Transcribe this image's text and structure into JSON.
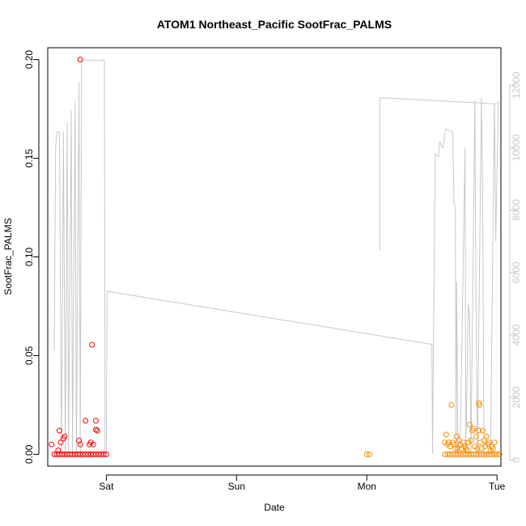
{
  "chart_data": {
    "type": "scatter",
    "title": "ATOM1 Northeast_Pacific SootFrac_PALMS",
    "xlabel": "Date",
    "ylabel": "SootFrac_PALMS",
    "x_unit": "days",
    "xlim": [
      -0.45,
      3.03
    ],
    "ylim": [
      -0.006,
      0.206
    ],
    "y_ticks": [
      "0.00",
      "0.05",
      "0.10",
      "0.15",
      "0.20"
    ],
    "y_tick_values": [
      0,
      0.05,
      0.1,
      0.15,
      0.2
    ],
    "x_ticks": [
      "Sat",
      "Sun",
      "Mon",
      "Tue"
    ],
    "x_tick_values": [
      0,
      1,
      2,
      3
    ],
    "secondary_axis": {
      "ylim": [
        -200,
        13200
      ],
      "ticks": [
        "0",
        "2000",
        "4000",
        "6000",
        "8000",
        "10000",
        "12000"
      ],
      "tick_values": [
        0,
        2000,
        4000,
        6000,
        8000,
        10000,
        12000
      ],
      "color": "#c8c8c8"
    },
    "altitude_line": {
      "color": "#c8c8c8",
      "points": [
        [
          -0.4,
          3500
        ],
        [
          -0.39,
          10000
        ],
        [
          -0.38,
          10500
        ],
        [
          -0.36,
          10500
        ],
        [
          -0.345,
          200
        ],
        [
          -0.33,
          10500
        ],
        [
          -0.315,
          200
        ],
        [
          -0.3,
          10800
        ],
        [
          -0.29,
          200
        ],
        [
          -0.27,
          11200
        ],
        [
          -0.26,
          200
        ],
        [
          -0.24,
          11500
        ],
        [
          -0.23,
          200
        ],
        [
          -0.21,
          12100
        ],
        [
          -0.2,
          200
        ],
        [
          -0.19,
          12800
        ],
        [
          -0.16,
          12800
        ],
        [
          -0.015,
          12800
        ],
        [
          -0.01,
          200
        ],
        [
          -0.005,
          200
        ],
        [
          0,
          200
        ],
        [
          0.005,
          5400
        ],
        [
          2.5,
          3700
        ],
        [
          2.505,
          200
        ],
        [
          2.525,
          9800
        ],
        [
          2.55,
          9700
        ],
        [
          2.56,
          10200
        ],
        [
          2.58,
          10000
        ],
        [
          2.59,
          10100
        ],
        [
          2.605,
          10600
        ],
        [
          2.66,
          10500
        ],
        [
          2.67,
          8200
        ],
        [
          2.68,
          8100
        ],
        [
          2.685,
          200
        ],
        [
          2.69,
          5700
        ],
        [
          2.7,
          200
        ],
        [
          2.72,
          1000
        ],
        [
          2.755,
          10000
        ],
        [
          2.76,
          200
        ],
        [
          2.78,
          5000
        ],
        [
          2.79,
          4600
        ],
        [
          2.8,
          200
        ],
        [
          2.83,
          11500
        ],
        [
          2.84,
          4400
        ],
        [
          2.85,
          200
        ],
        [
          2.88,
          11600
        ],
        [
          2.89,
          8000
        ],
        [
          2.9,
          200
        ],
        [
          2.95,
          200
        ],
        [
          2.98,
          11400
        ],
        [
          2.99,
          7000
        ],
        [
          3.01,
          11500
        ],
        [
          2.1,
          6700
        ],
        [
          2.1,
          11600
        ],
        [
          3.0,
          11400
        ]
      ]
    },
    "series": [
      {
        "color": "#ff0000",
        "points": [
          [
            -0.42,
            0.005
          ],
          [
            -0.37,
            0.002
          ],
          [
            -0.36,
            0.012
          ],
          [
            -0.35,
            0.006
          ],
          [
            -0.33,
            0.008
          ],
          [
            -0.32,
            0.009
          ],
          [
            -0.2,
            0.2
          ],
          [
            -0.21,
            0.007
          ],
          [
            -0.2,
            0.005
          ],
          [
            -0.16,
            0.017
          ],
          [
            -0.13,
            0.005
          ],
          [
            -0.12,
            0.006
          ],
          [
            -0.11,
            0.0555
          ],
          [
            -0.1,
            0.005
          ],
          [
            -0.08,
            0.017
          ],
          [
            -0.07,
            0.012
          ],
          [
            -0.08,
            0.0125
          ],
          [
            -0.06,
            0.0
          ],
          [
            -0.4,
            0.0
          ],
          [
            -0.38,
            0.0
          ],
          [
            -0.36,
            0.0
          ],
          [
            -0.34,
            0.0
          ],
          [
            -0.32,
            0.0
          ],
          [
            -0.3,
            0.0
          ],
          [
            -0.28,
            0.0
          ],
          [
            -0.26,
            0.0
          ],
          [
            -0.24,
            0.0
          ],
          [
            -0.22,
            0.0
          ],
          [
            -0.2,
            0.0
          ],
          [
            -0.18,
            0.0
          ],
          [
            -0.16,
            0.0
          ],
          [
            -0.14,
            0.0
          ],
          [
            -0.12,
            0.0
          ],
          [
            -0.1,
            0.0
          ],
          [
            -0.08,
            0.0
          ],
          [
            -0.04,
            0.0
          ],
          [
            -0.02,
            0.0
          ],
          [
            0.0,
            0.0
          ]
        ]
      },
      {
        "color": "#ff8c00",
        "points": [
          [
            2.0,
            0.0
          ],
          [
            2.02,
            0.0
          ],
          [
            2.6,
            0.006
          ],
          [
            2.61,
            0.01
          ],
          [
            2.62,
            0.005
          ],
          [
            2.63,
            0.006
          ],
          [
            2.64,
            0.004
          ],
          [
            2.65,
            0.025
          ],
          [
            2.66,
            0.006
          ],
          [
            2.67,
            0.005
          ],
          [
            2.68,
            0.003
          ],
          [
            2.69,
            0.009
          ],
          [
            2.7,
            0.003
          ],
          [
            2.71,
            0.007
          ],
          [
            2.72,
            0.005
          ],
          [
            2.73,
            0.003
          ],
          [
            2.74,
            0.006
          ],
          [
            2.75,
            0.004
          ],
          [
            2.76,
            0.003
          ],
          [
            2.77,
            0.002
          ],
          [
            2.78,
            0.006
          ],
          [
            2.79,
            0.015
          ],
          [
            2.8,
            0.007
          ],
          [
            2.81,
            0.012
          ],
          [
            2.82,
            0.013
          ],
          [
            2.83,
            0.004
          ],
          [
            2.84,
            0.009
          ],
          [
            2.85,
            0.003
          ],
          [
            2.86,
            0.012
          ],
          [
            2.86,
            0.026
          ],
          [
            2.865,
            0.025
          ],
          [
            2.87,
            0.006
          ],
          [
            2.88,
            0.003
          ],
          [
            2.89,
            0.012
          ],
          [
            2.9,
            0.007
          ],
          [
            2.91,
            0.004
          ],
          [
            2.92,
            0.009
          ],
          [
            2.93,
            0.005
          ],
          [
            2.94,
            0.006
          ],
          [
            2.95,
            0.002
          ],
          [
            2.96,
            0.004
          ],
          [
            2.97,
            0.003
          ],
          [
            2.98,
            0.006
          ],
          [
            2.6,
            0.0
          ],
          [
            2.62,
            0.0
          ],
          [
            2.64,
            0.0
          ],
          [
            2.66,
            0.0
          ],
          [
            2.68,
            0.0
          ],
          [
            2.7,
            0.0
          ],
          [
            2.72,
            0.0
          ],
          [
            2.74,
            0.0
          ],
          [
            2.76,
            0.0
          ],
          [
            2.78,
            0.0
          ],
          [
            2.8,
            0.0
          ],
          [
            2.82,
            0.0
          ],
          [
            2.84,
            0.0
          ],
          [
            2.86,
            0.0
          ],
          [
            2.88,
            0.0
          ],
          [
            2.9,
            0.0
          ],
          [
            2.92,
            0.0
          ],
          [
            2.94,
            0.0
          ],
          [
            2.96,
            0.0
          ],
          [
            2.98,
            0.0
          ],
          [
            3.0,
            0.0
          ],
          [
            3.02,
            0.0
          ]
        ]
      }
    ]
  }
}
